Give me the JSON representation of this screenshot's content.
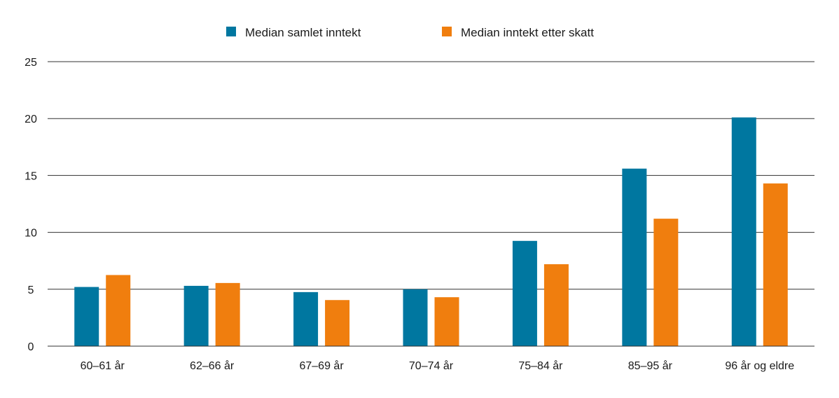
{
  "chart_data": {
    "type": "bar",
    "title": "",
    "xlabel": "",
    "ylabel": "",
    "ylim": [
      0,
      25
    ],
    "yticks": [
      0,
      5,
      10,
      15,
      20,
      25
    ],
    "grid": true,
    "legend_position": "top-center",
    "categories": [
      "60–61 år",
      "62–66 år",
      "67–69 år",
      "70–74 år",
      "75–84 år",
      "85–95 år",
      "96 år og eldre"
    ],
    "series": [
      {
        "name": "Median samlet inntekt",
        "color": "#0077a0",
        "values": [
          5.2,
          5.3,
          4.75,
          5.0,
          9.25,
          15.6,
          20.1
        ]
      },
      {
        "name": "Median inntekt etter skatt",
        "color": "#f07e0e",
        "values": [
          6.25,
          5.55,
          4.05,
          4.3,
          7.2,
          11.2,
          14.3
        ]
      }
    ]
  }
}
